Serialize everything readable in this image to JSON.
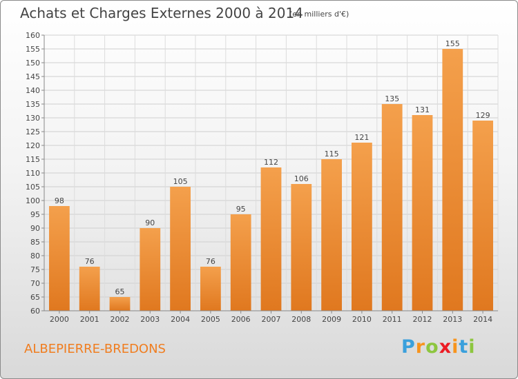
{
  "header": {
    "title": "Achats et Charges Externes 2000 à 2014",
    "subtitle": "(en milliers d'€)"
  },
  "footer": {
    "commune": "ALBEPIERRE-BREDONS",
    "logo": [
      "P",
      "r",
      "o",
      "x",
      "i",
      "t",
      "i"
    ],
    "logo_colors": [
      "#3aa0dc",
      "#f7941d",
      "#8dc63f",
      "#ec1c24",
      "#f7941d",
      "#3aa0dc",
      "#8dc63f"
    ]
  },
  "chart_data": {
    "type": "bar",
    "title": "Achats et Charges Externes 2000 à 2014",
    "categories": [
      "2000",
      "2001",
      "2002",
      "2003",
      "2004",
      "2005",
      "2006",
      "2007",
      "2008",
      "2009",
      "2010",
      "2011",
      "2012",
      "2013",
      "2014"
    ],
    "values": [
      98,
      76,
      65,
      90,
      105,
      76,
      95,
      112,
      106,
      115,
      121,
      135,
      131,
      155,
      129
    ],
    "ylim": [
      60,
      160
    ],
    "yticks": [
      60,
      65,
      70,
      75,
      80,
      85,
      90,
      95,
      100,
      105,
      110,
      115,
      120,
      125,
      130,
      135,
      140,
      145,
      150,
      155,
      160
    ],
    "grid": true,
    "bar_color": "#f4a04c",
    "bar_color_dark": "#e0781f"
  }
}
